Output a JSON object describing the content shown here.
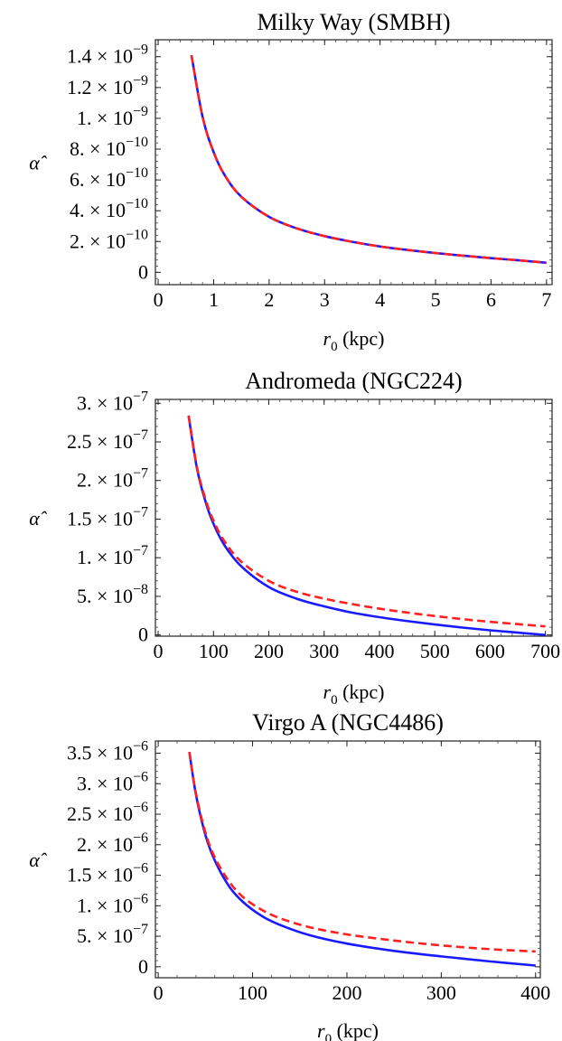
{
  "chart_data": [
    {
      "type": "line",
      "title": "Milky Way (SMBH)",
      "xlabel_sym": "r",
      "xlabel_sub": "0",
      "xlabel_unit": "(kpc)",
      "ylabel": "α̂",
      "xlim": [
        -0.05,
        7.1
      ],
      "ylim": [
        -0.08,
        1.51
      ],
      "x_ticks": [
        {
          "v": 0,
          "label": "0"
        },
        {
          "v": 1,
          "label": "1"
        },
        {
          "v": 2,
          "label": "2"
        },
        {
          "v": 3,
          "label": "3"
        },
        {
          "v": 4,
          "label": "4"
        },
        {
          "v": 5,
          "label": "5"
        },
        {
          "v": 6,
          "label": "6"
        },
        {
          "v": 7,
          "label": "7"
        }
      ],
      "y_ticks": [
        {
          "v": 0,
          "mant": "0",
          "exp": ""
        },
        {
          "v": 0.2,
          "mant": "2.",
          "exp": "−10"
        },
        {
          "v": 0.4,
          "mant": "4.",
          "exp": "−10"
        },
        {
          "v": 0.6,
          "mant": "6.",
          "exp": "−10"
        },
        {
          "v": 0.8,
          "mant": "8.",
          "exp": "−10"
        },
        {
          "v": 1.0,
          "mant": "1.",
          "exp": "−9"
        },
        {
          "v": 1.2,
          "mant": "1.2",
          "exp": "−9"
        },
        {
          "v": 1.4,
          "mant": "1.4",
          "exp": "−9"
        }
      ],
      "y_scale_note": "y values in units of 1e-9",
      "series": [
        {
          "color": "#1a1aff",
          "dash": false,
          "x": [
            0.6,
            0.8,
            1.0,
            1.2,
            1.5,
            2.0,
            2.5,
            3.0,
            3.5,
            4.0,
            4.5,
            5.0,
            5.5,
            6.0,
            6.5,
            7.0
          ],
          "y": [
            1.41,
            1.01,
            0.78,
            0.63,
            0.49,
            0.36,
            0.285,
            0.235,
            0.198,
            0.168,
            0.145,
            0.125,
            0.108,
            0.092,
            0.078,
            0.062
          ]
        },
        {
          "color": "#ff2020",
          "dash": true,
          "x": [
            0.6,
            0.8,
            1.0,
            1.2,
            1.5,
            2.0,
            2.5,
            3.0,
            3.5,
            4.0,
            4.5,
            5.0,
            5.5,
            6.0,
            6.5,
            7.0
          ],
          "y": [
            1.41,
            1.01,
            0.78,
            0.63,
            0.49,
            0.36,
            0.285,
            0.235,
            0.198,
            0.168,
            0.145,
            0.125,
            0.108,
            0.092,
            0.078,
            0.063
          ]
        }
      ]
    },
    {
      "type": "line",
      "title": "Andromeda (NGC224)",
      "xlabel_sym": "r",
      "xlabel_sub": "0",
      "xlabel_unit": "(kpc)",
      "ylabel": "α̂",
      "xlim": [
        -5,
        712
      ],
      "ylim": [
        -0.016,
        3.05
      ],
      "x_ticks": [
        {
          "v": 0,
          "label": "0"
        },
        {
          "v": 100,
          "label": "100"
        },
        {
          "v": 200,
          "label": "200"
        },
        {
          "v": 300,
          "label": "300"
        },
        {
          "v": 400,
          "label": "400"
        },
        {
          "v": 500,
          "label": "500"
        },
        {
          "v": 600,
          "label": "600"
        },
        {
          "v": 700,
          "label": "700"
        }
      ],
      "y_ticks": [
        {
          "v": 0,
          "mant": "0",
          "exp": ""
        },
        {
          "v": 0.5,
          "mant": "5.",
          "exp": "−8"
        },
        {
          "v": 1.0,
          "mant": "1.",
          "exp": "−7"
        },
        {
          "v": 1.5,
          "mant": "1.5",
          "exp": "−7"
        },
        {
          "v": 2.0,
          "mant": "2.",
          "exp": "−7"
        },
        {
          "v": 2.5,
          "mant": "2.5",
          "exp": "−7"
        },
        {
          "v": 3.0,
          "mant": "3.",
          "exp": "−7"
        }
      ],
      "y_scale_note": "y values in units of 1e-7",
      "series": [
        {
          "color": "#1a1aff",
          "dash": false,
          "x": [
            55,
            70,
            85,
            100,
            120,
            150,
            200,
            250,
            300,
            350,
            400,
            450,
            500,
            550,
            600,
            650,
            700
          ],
          "y": [
            2.84,
            2.16,
            1.74,
            1.44,
            1.16,
            0.89,
            0.62,
            0.47,
            0.37,
            0.29,
            0.23,
            0.18,
            0.135,
            0.095,
            0.06,
            0.03,
            0.0
          ]
        },
        {
          "color": "#ff2020",
          "dash": true,
          "x": [
            55,
            70,
            85,
            100,
            120,
            150,
            200,
            250,
            300,
            350,
            400,
            450,
            500,
            550,
            600,
            650,
            700
          ],
          "y": [
            2.84,
            2.18,
            1.77,
            1.48,
            1.21,
            0.95,
            0.7,
            0.56,
            0.47,
            0.4,
            0.34,
            0.29,
            0.245,
            0.205,
            0.17,
            0.14,
            0.11
          ]
        }
      ]
    },
    {
      "type": "line",
      "title": "Virgo A (NGC4486)",
      "xlabel_sym": "r",
      "xlabel_sub": "0",
      "xlabel_unit": "(kpc)",
      "ylabel": "α̂",
      "xlim": [
        -3,
        405
      ],
      "ylim": [
        -0.18,
        3.7
      ],
      "x_ticks": [
        {
          "v": 0,
          "label": "0"
        },
        {
          "v": 100,
          "label": "100"
        },
        {
          "v": 200,
          "label": "200"
        },
        {
          "v": 300,
          "label": "300"
        },
        {
          "v": 400,
          "label": "400"
        }
      ],
      "y_ticks": [
        {
          "v": 0,
          "mant": "0",
          "exp": ""
        },
        {
          "v": 0.5,
          "mant": "5.",
          "exp": "−7"
        },
        {
          "v": 1.0,
          "mant": "1.",
          "exp": "−6"
        },
        {
          "v": 1.5,
          "mant": "1.5",
          "exp": "−6"
        },
        {
          "v": 2.0,
          "mant": "2.",
          "exp": "−6"
        },
        {
          "v": 2.5,
          "mant": "2.5",
          "exp": "−6"
        },
        {
          "v": 3.0,
          "mant": "3.",
          "exp": "−6"
        },
        {
          "v": 3.5,
          "mant": "3.5",
          "exp": "−6"
        }
      ],
      "y_scale_note": "y values in units of 1e-6",
      "series": [
        {
          "color": "#1a1aff",
          "dash": false,
          "x": [
            33,
            40,
            50,
            60,
            75,
            90,
            110,
            130,
            160,
            200,
            250,
            300,
            350,
            400
          ],
          "y": [
            3.52,
            2.82,
            2.16,
            1.74,
            1.32,
            1.06,
            0.83,
            0.68,
            0.52,
            0.38,
            0.26,
            0.17,
            0.09,
            0.02
          ]
        },
        {
          "color": "#ff2020",
          "dash": true,
          "x": [
            33,
            40,
            50,
            60,
            75,
            90,
            110,
            130,
            160,
            200,
            250,
            300,
            350,
            400
          ],
          "y": [
            3.52,
            2.84,
            2.2,
            1.79,
            1.4,
            1.14,
            0.93,
            0.79,
            0.65,
            0.53,
            0.43,
            0.35,
            0.29,
            0.25
          ]
        }
      ]
    }
  ]
}
